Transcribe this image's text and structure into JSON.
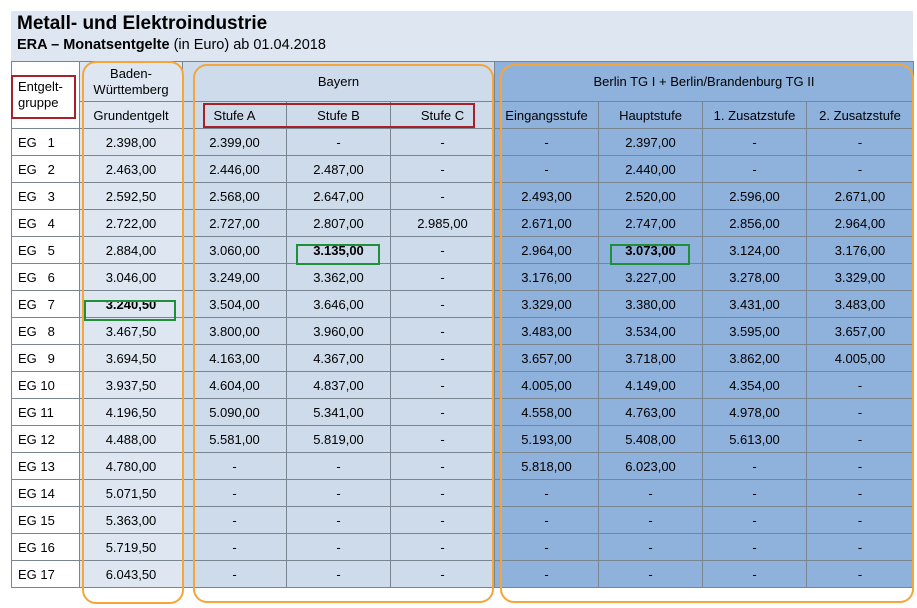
{
  "title": "Metall- und Elektroindustrie",
  "subtitle": {
    "bold": "ERA – Monatsentgelte",
    "rest": " (in Euro) ab 01.04.2018"
  },
  "headers": {
    "entgeltgruppe": [
      "Entgelt-",
      "gruppe"
    ],
    "bw": [
      "Baden-",
      "Württemberg"
    ],
    "bw_sub": "Grundentgelt",
    "bayern": "Bayern",
    "bayern_sub": [
      "Stufe A",
      "Stufe B",
      "Stufe C"
    ],
    "berlin": "Berlin TG I + Berlin/Brandenburg TG II",
    "berlin_sub": [
      "Eingangsstufe",
      "Hauptstufe",
      "1. Zusatzstufe",
      "2. Zusatzstufe"
    ]
  },
  "rows": [
    [
      "EG   1",
      "2.398,00",
      "2.399,00",
      "-",
      "-",
      "-",
      "2.397,00",
      "-",
      "-"
    ],
    [
      "EG   2",
      "2.463,00",
      "2.446,00",
      "2.487,00",
      "-",
      "-",
      "2.440,00",
      "-",
      "-"
    ],
    [
      "EG   3",
      "2.592,50",
      "2.568,00",
      "2.647,00",
      "-",
      "2.493,00",
      "2.520,00",
      "2.596,00",
      "2.671,00"
    ],
    [
      "EG   4",
      "2.722,00",
      "2.727,00",
      "2.807,00",
      "2.985,00",
      "2.671,00",
      "2.747,00",
      "2.856,00",
      "2.964,00"
    ],
    [
      "EG   5",
      "2.884,00",
      "3.060,00",
      "3.135,00",
      "-",
      "2.964,00",
      "3.073,00",
      "3.124,00",
      "3.176,00"
    ],
    [
      "EG   6",
      "3.046,00",
      "3.249,00",
      "3.362,00",
      "-",
      "3.176,00",
      "3.227,00",
      "3.278,00",
      "3.329,00"
    ],
    [
      "EG   7",
      "3.240,50",
      "3.504,00",
      "3.646,00",
      "-",
      "3.329,00",
      "3.380,00",
      "3.431,00",
      "3.483,00"
    ],
    [
      "EG   8",
      "3.467,50",
      "3.800,00",
      "3.960,00",
      "-",
      "3.483,00",
      "3.534,00",
      "3.595,00",
      "3.657,00"
    ],
    [
      "EG   9",
      "3.694,50",
      "4.163,00",
      "4.367,00",
      "-",
      "3.657,00",
      "3.718,00",
      "3.862,00",
      "4.005,00"
    ],
    [
      "EG 10",
      "3.937,50",
      "4.604,00",
      "4.837,00",
      "-",
      "4.005,00",
      "4.149,00",
      "4.354,00",
      "-"
    ],
    [
      "EG 11",
      "4.196,50",
      "5.090,00",
      "5.341,00",
      "-",
      "4.558,00",
      "4.763,00",
      "4.978,00",
      "-"
    ],
    [
      "EG 12",
      "4.488,00",
      "5.581,00",
      "5.819,00",
      "-",
      "5.193,00",
      "5.408,00",
      "5.613,00",
      "-"
    ],
    [
      "EG 13",
      "4.780,00",
      "-",
      "-",
      "-",
      "5.818,00",
      "6.023,00",
      "-",
      "-"
    ],
    [
      "EG 14",
      "5.071,50",
      "-",
      "-",
      "-",
      "-",
      "-",
      "-",
      "-"
    ],
    [
      "EG 15",
      "5.363,00",
      "-",
      "-",
      "-",
      "-",
      "-",
      "-",
      "-"
    ],
    [
      "EG 16",
      "5.719,50",
      "-",
      "-",
      "-",
      "-",
      "-",
      "-",
      "-"
    ],
    [
      "EG 17",
      "6.043,50",
      "-",
      "-",
      "-",
      "-",
      "-",
      "-",
      "-"
    ]
  ]
}
